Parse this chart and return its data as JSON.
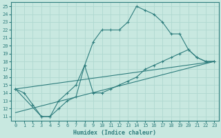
{
  "xlabel": "Humidex (Indice chaleur)",
  "xlim": [
    -0.5,
    23.5
  ],
  "ylim": [
    10.5,
    25.5
  ],
  "xticks": [
    0,
    1,
    2,
    3,
    4,
    5,
    6,
    7,
    8,
    9,
    10,
    11,
    12,
    13,
    14,
    15,
    16,
    17,
    18,
    19,
    20,
    21,
    22,
    23
  ],
  "yticks": [
    11,
    12,
    13,
    14,
    15,
    16,
    17,
    18,
    19,
    20,
    21,
    22,
    23,
    24,
    25
  ],
  "bg_color": "#c8e8e0",
  "grid_color": "#b0d8d0",
  "line_color": "#2e7d7d",
  "line1": {
    "x": [
      0,
      1,
      2,
      3,
      4,
      5,
      6,
      7,
      8,
      9,
      10,
      11,
      12,
      13,
      14,
      15,
      16,
      17,
      18,
      19,
      20,
      21,
      22,
      23
    ],
    "y": [
      14.5,
      14.0,
      12.5,
      11.0,
      11.0,
      13.0,
      14.0,
      15.0,
      17.5,
      20.5,
      22.0,
      22.0,
      22.0,
      23.0,
      25.0,
      24.5,
      24.0,
      23.0,
      21.5,
      21.5,
      19.5,
      18.5,
      18.0,
      18.0
    ]
  },
  "line2": {
    "x": [
      0,
      23
    ],
    "y": [
      14.5,
      18.0
    ]
  },
  "line3": {
    "x": [
      0,
      3,
      4,
      5,
      6,
      7,
      8,
      9,
      10,
      11,
      12,
      13,
      14,
      15,
      16,
      17,
      18,
      19,
      20,
      21,
      22,
      23
    ],
    "y": [
      14.5,
      11.0,
      11.0,
      12.0,
      13.0,
      13.5,
      17.5,
      14.0,
      14.0,
      14.5,
      15.0,
      15.5,
      16.0,
      17.0,
      17.5,
      18.0,
      18.5,
      19.0,
      19.5,
      18.5,
      18.0,
      18.0
    ]
  },
  "line4": {
    "x": [
      0,
      23
    ],
    "y": [
      11.5,
      18.0
    ]
  }
}
